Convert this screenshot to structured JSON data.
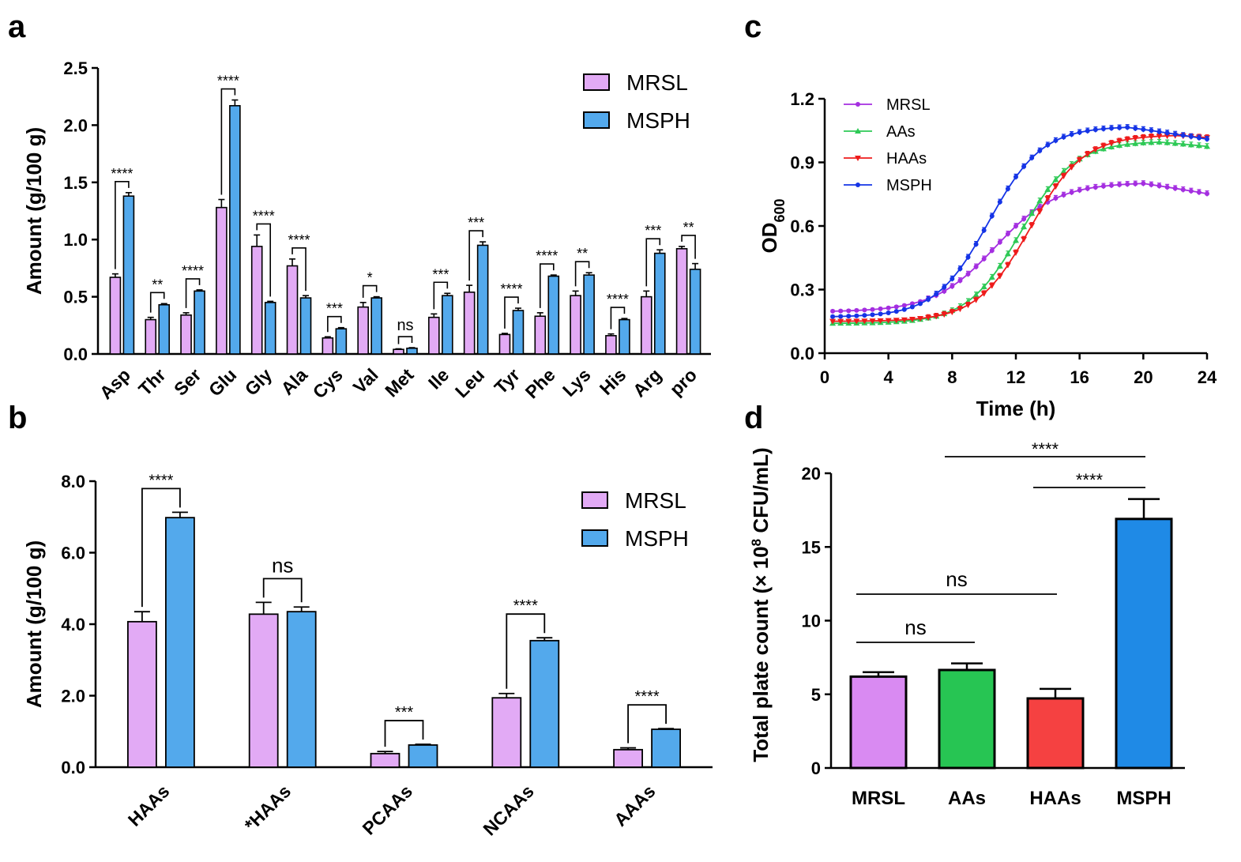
{
  "panel_labels": {
    "a": "a",
    "b": "b",
    "c": "c",
    "d": "d"
  },
  "colors": {
    "MRSL": "#e2aaf5",
    "MSPH": "#53a9ec",
    "d_MRSL": "#d98af2",
    "d_AAs": "#27c553",
    "d_HAAs": "#f54141",
    "d_MSPH": "#1f8ae6",
    "c_MRSL": "#a42ee0",
    "c_AAs": "#2ec956",
    "c_HAAs": "#ee1b1b",
    "c_MSPH": "#1534e6"
  },
  "chart_data": [
    {
      "id": "a",
      "type": "bar",
      "ylabel": "Amount (g/100 g)",
      "ylim": [
        0,
        2.5
      ],
      "yticks": [
        "0.0",
        "0.5",
        "1.0",
        "1.5",
        "2.0",
        "2.5"
      ],
      "categories": [
        "Asp",
        "Thr",
        "Ser",
        "Glu",
        "Gly",
        "Ala",
        "Cys",
        "Val",
        "Met",
        "Ile",
        "Leu",
        "Tyr",
        "Phe",
        "Lys",
        "His",
        "Arg",
        "pro"
      ],
      "series": [
        {
          "name": "MRSL",
          "values": [
            0.67,
            0.3,
            0.34,
            1.28,
            0.94,
            0.77,
            0.14,
            0.41,
            0.04,
            0.32,
            0.54,
            0.17,
            0.33,
            0.51,
            0.16,
            0.5,
            0.92
          ],
          "errors": [
            0.03,
            0.02,
            0.02,
            0.07,
            0.1,
            0.06,
            0.01,
            0.04,
            0.005,
            0.03,
            0.06,
            0.01,
            0.03,
            0.04,
            0.015,
            0.05,
            0.02
          ]
        },
        {
          "name": "MSPH",
          "values": [
            1.38,
            0.43,
            0.55,
            2.17,
            0.45,
            0.49,
            0.22,
            0.49,
            0.05,
            0.51,
            0.95,
            0.38,
            0.68,
            0.69,
            0.3,
            0.88,
            0.74
          ],
          "errors": [
            0.03,
            0.01,
            0.01,
            0.05,
            0.01,
            0.02,
            0.01,
            0.01,
            0.005,
            0.02,
            0.03,
            0.02,
            0.01,
            0.02,
            0.01,
            0.03,
            0.05
          ]
        }
      ],
      "significance": [
        "****",
        "**",
        "****",
        "****",
        "****",
        "****",
        "***",
        "*",
        "ns",
        "***",
        "***",
        "****",
        "****",
        "**",
        "****",
        "***",
        "**"
      ],
      "legend": [
        "MRSL",
        "MSPH"
      ]
    },
    {
      "id": "b",
      "type": "bar",
      "ylabel": "Amount (g/100 g)",
      "ylim": [
        0,
        8.0
      ],
      "yticks": [
        "0.0",
        "2.0",
        "4.0",
        "6.0",
        "8.0"
      ],
      "categories": [
        "HAAs",
        "*HAAs",
        "PCAAs",
        "NCAAs",
        "AAAs"
      ],
      "series": [
        {
          "name": "MRSL",
          "values": [
            4.07,
            4.28,
            0.38,
            1.94,
            0.49
          ],
          "errors": [
            0.28,
            0.33,
            0.06,
            0.12,
            0.05
          ]
        },
        {
          "name": "MSPH",
          "values": [
            6.98,
            4.35,
            0.62,
            3.54,
            1.06
          ],
          "errors": [
            0.15,
            0.13,
            0.02,
            0.08,
            0.02
          ]
        }
      ],
      "significance": [
        "****",
        "ns",
        "***",
        "****",
        "****"
      ],
      "legend": [
        "MRSL",
        "MSPH"
      ]
    },
    {
      "id": "c",
      "type": "line",
      "xlabel": "Time (h)",
      "ylabel": "OD",
      "ylabel_sub": "600",
      "xlim": [
        0,
        24
      ],
      "ylim": [
        0,
        1.2
      ],
      "xticks": [
        "0",
        "4",
        "8",
        "12",
        "16",
        "20",
        "24"
      ],
      "yticks": [
        "0.0",
        "0.3",
        "0.6",
        "0.9",
        "1.2"
      ],
      "x_sampling": {
        "start": 0.5,
        "step": 0.5,
        "count": 48
      },
      "series": [
        {
          "name": "MRSL",
          "marker": "circle",
          "y0": 0.195,
          "A": 0.61,
          "k": 0.52,
          "t0": 10.7,
          "decline_start": 20,
          "decline_slope": 0.013
        },
        {
          "name": "AAs",
          "marker": "triangle-up",
          "y0": 0.14,
          "A": 0.86,
          "k": 0.6,
          "t0": 12.3,
          "decline_start": 21,
          "decline_slope": 0.008
        },
        {
          "name": "HAAs",
          "marker": "triangle-down",
          "y0": 0.15,
          "A": 0.88,
          "k": 0.6,
          "t0": 12.9,
          "decline_start": 22,
          "decline_slope": 0.006
        },
        {
          "name": "MSPH",
          "marker": "circle",
          "y0": 0.17,
          "A": 0.9,
          "k": 0.6,
          "t0": 10.3,
          "decline_start": 19,
          "decline_slope": 0.012
        }
      ],
      "legend": [
        "MRSL",
        "AAs",
        "HAAs",
        "MSPH"
      ]
    },
    {
      "id": "d",
      "type": "bar",
      "ylabel": "Total plate count (× 10",
      "ylabel_sup": "8",
      "ylabel_tail": " CFU/mL)",
      "ylim": [
        0,
        20
      ],
      "yticks": [
        "0",
        "5",
        "10",
        "15",
        "20"
      ],
      "categories": [
        "MRSL",
        "AAs",
        "HAAs",
        "MSPH"
      ],
      "values": [
        6.2,
        6.65,
        4.72,
        16.9
      ],
      "errors": [
        0.3,
        0.45,
        0.65,
        1.35
      ],
      "comparisons": [
        {
          "from": "MRSL",
          "to": "AAs",
          "label": "ns"
        },
        {
          "from": "MRSL",
          "to": "HAAs",
          "label": "ns"
        },
        {
          "from": "HAAs",
          "to": "MSPH",
          "label": "****"
        },
        {
          "from": "AAs",
          "to": "MSPH",
          "label": "****"
        }
      ]
    }
  ]
}
